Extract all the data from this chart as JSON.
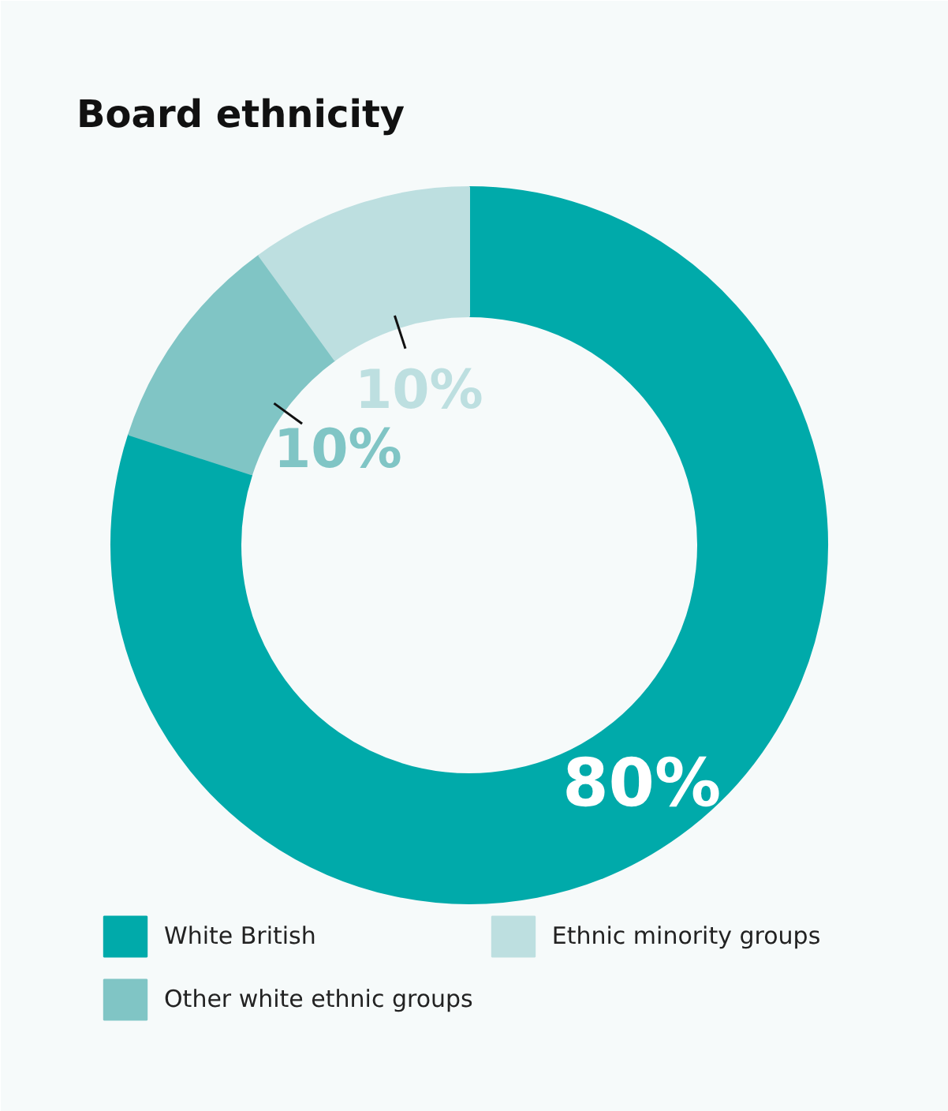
{
  "chart_data": {
    "type": "donut",
    "title": "Board ethnicity",
    "categories": [
      "White British",
      "Other white ethnic groups",
      "Ethnic minority groups"
    ],
    "values": [
      80,
      10,
      10
    ],
    "value_labels": [
      "80%",
      "10%",
      "10%"
    ],
    "colors": [
      "#00aaaa",
      "#80c5c5",
      "#bddfe0"
    ],
    "legend": "bottom"
  }
}
